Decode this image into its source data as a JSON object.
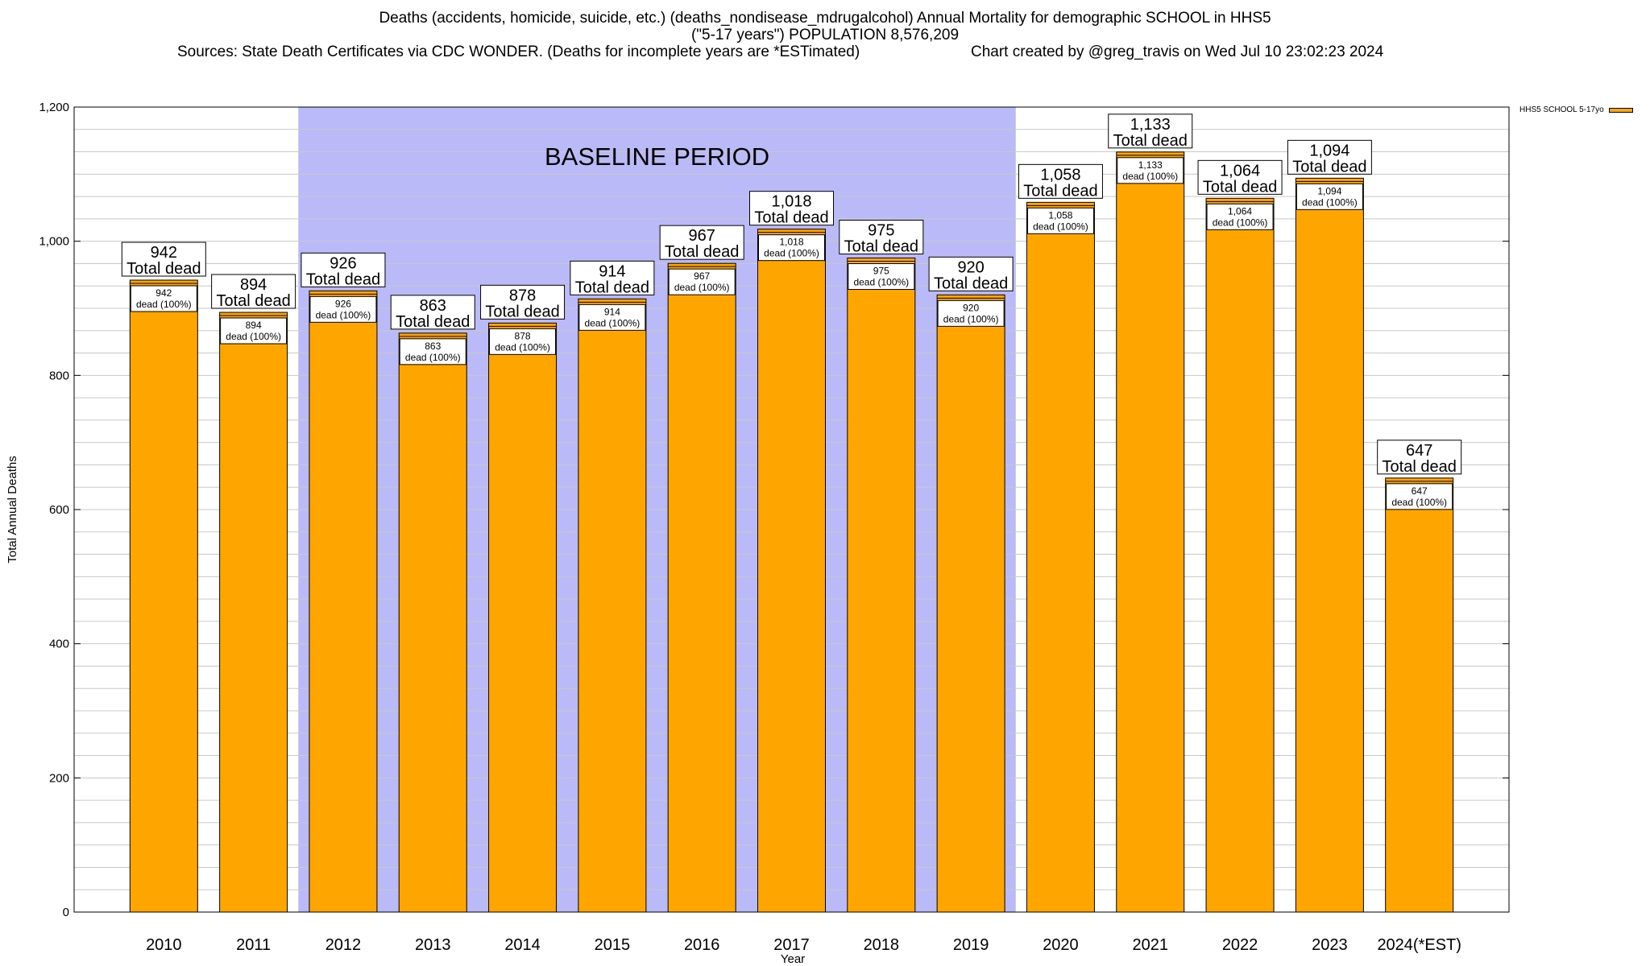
{
  "title": {
    "line1": "Deaths (accidents, homicide, suicide, etc.) (deaths_nondisease_mdrugalcohol) Annual Mortality for demographic SCHOOL in HHS5",
    "line2": "(\"5-17 years\") POPULATION 8,576,209",
    "sources": "Sources: State Death Certificates via CDC WONDER. (Deaths for incomplete years are *ESTimated)",
    "credit": "Chart created by @greg_travis on Wed Jul 10 23:02:23 2024"
  },
  "legend": {
    "label": "HHS5 SCHOOL 5-17yo"
  },
  "colors": {
    "bar": "#ffa500",
    "baseline_shade": "#babaf8",
    "grid": "#c8c8c8"
  },
  "chart_data": {
    "type": "bar",
    "categories": [
      "2010",
      "2011",
      "2012",
      "2013",
      "2014",
      "2015",
      "2016",
      "2017",
      "2018",
      "2019",
      "2020",
      "2021",
      "2022",
      "2023",
      "2024(*EST)"
    ],
    "series": [
      {
        "name": "HHS5 SCHOOL 5-17yo",
        "values": [
          942,
          894,
          926,
          863,
          878,
          914,
          967,
          1018,
          975,
          920,
          1058,
          1133,
          1064,
          1094,
          647
        ]
      }
    ],
    "total_labels": [
      "942",
      "894",
      "926",
      "863",
      "878",
      "914",
      "967",
      "1,018",
      "975",
      "920",
      "1,058",
      "1,133",
      "1,064",
      "1,094",
      "647"
    ],
    "total_suffix": "Total dead",
    "inner_suffix": "dead (100%)",
    "xlabel": "Year",
    "ylabel": "Total Annual Deaths",
    "ylim": [
      0,
      1200
    ],
    "yticks": [
      0,
      200,
      400,
      600,
      800,
      1000,
      1200
    ],
    "ytick_labels": [
      "0",
      "200",
      "400",
      "600",
      "800",
      "1,000",
      "1,200"
    ],
    "shaded_region": {
      "label": "BASELINE PERIOD",
      "from": "2012",
      "to": "2019"
    },
    "grid": true,
    "legend_position": "top-right"
  }
}
